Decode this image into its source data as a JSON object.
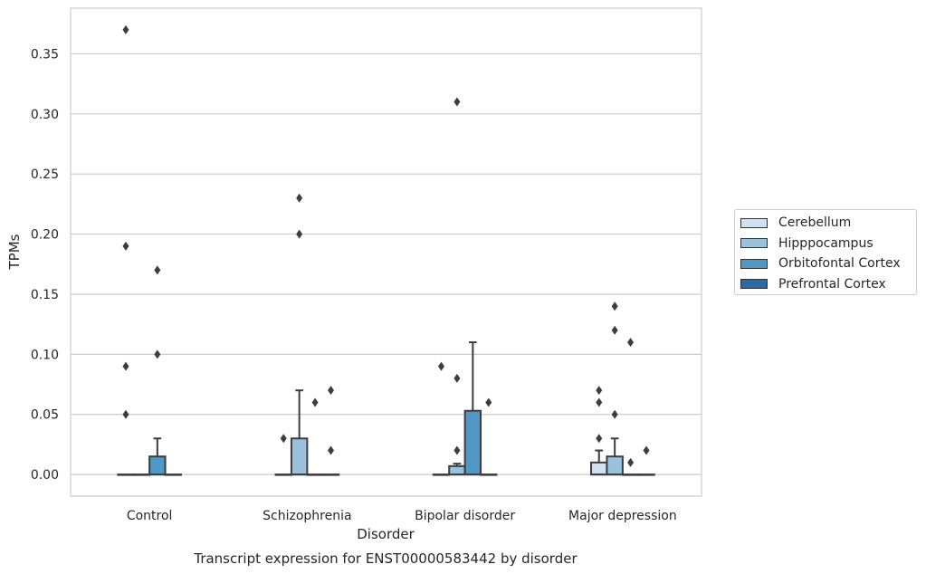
{
  "chart_data": {
    "type": "box",
    "title": "Transcript expression for ENST00000583442 by disorder",
    "xlabel": "Disorder",
    "ylabel": "TPMs",
    "ylim": [
      -0.018,
      0.388
    ],
    "yticks": [
      0.0,
      0.05,
      0.1,
      0.15,
      0.2,
      0.25,
      0.3,
      0.35
    ],
    "ytick_labels": [
      "0.00",
      "0.05",
      "0.10",
      "0.15",
      "0.20",
      "0.25",
      "0.30",
      "0.35"
    ],
    "grid": "horizontal",
    "legend_placement": "right",
    "categories": [
      "Control",
      "Schizophrenia",
      "Bipolar disorder",
      "Major depression"
    ],
    "series": [
      {
        "name": "Cerebellum",
        "color": "#d0e1f2",
        "boxes": [
          {
            "q1": 0,
            "median": 0,
            "q3": 0,
            "whislo": 0,
            "whishi": 0,
            "fliers": [
              0.05,
              0.09,
              0.19,
              0.37
            ]
          },
          {
            "q1": 0,
            "median": 0,
            "q3": 0,
            "whislo": 0,
            "whishi": 0,
            "fliers": [
              0.03
            ]
          },
          {
            "q1": 0,
            "median": 0,
            "q3": 0,
            "whislo": 0,
            "whishi": 0,
            "fliers": [
              0.09
            ]
          },
          {
            "q1": 0,
            "median": 0,
            "q3": 0.01,
            "whislo": 0,
            "whishi": 0.02,
            "fliers": [
              0.03,
              0.06,
              0.07
            ]
          }
        ]
      },
      {
        "name": "Hipppocampus",
        "color": "#9ac2dd",
        "boxes": [
          {
            "q1": 0,
            "median": 0,
            "q3": 0,
            "whislo": 0,
            "whishi": 0,
            "fliers": []
          },
          {
            "q1": 0,
            "median": 0,
            "q3": 0.03,
            "whislo": 0,
            "whishi": 0.07,
            "fliers": [
              0.2,
              0.23
            ]
          },
          {
            "q1": 0,
            "median": 0,
            "q3": 0.007,
            "whislo": 0,
            "whishi": 0.009,
            "fliers": [
              0.02,
              0.08,
              0.31
            ]
          },
          {
            "q1": 0,
            "median": 0,
            "q3": 0.015,
            "whislo": 0,
            "whishi": 0.03,
            "fliers": [
              0.05,
              0.12,
              0.14
            ]
          }
        ]
      },
      {
        "name": "Orbitofontal Cortex",
        "color": "#5197c5",
        "boxes": [
          {
            "q1": 0,
            "median": 0,
            "q3": 0.015,
            "whislo": 0,
            "whishi": 0.03,
            "fliers": [
              0.1,
              0.17
            ]
          },
          {
            "q1": 0,
            "median": 0,
            "q3": 0,
            "whislo": 0,
            "whishi": 0,
            "fliers": [
              0.06
            ]
          },
          {
            "q1": 0,
            "median": 0,
            "q3": 0.053,
            "whislo": 0,
            "whishi": 0.11,
            "fliers": []
          },
          {
            "q1": 0,
            "median": 0,
            "q3": 0,
            "whislo": 0,
            "whishi": 0,
            "fliers": [
              0.01,
              0.11
            ]
          }
        ]
      },
      {
        "name": "Prefrontal Cortex",
        "color": "#2a6aa7",
        "boxes": [
          {
            "q1": 0,
            "median": 0,
            "q3": 0,
            "whislo": 0,
            "whishi": 0,
            "fliers": []
          },
          {
            "q1": 0,
            "median": 0,
            "q3": 0,
            "whislo": 0,
            "whishi": 0,
            "fliers": [
              0.02,
              0.07
            ]
          },
          {
            "q1": 0,
            "median": 0,
            "q3": 0,
            "whislo": 0,
            "whishi": 0,
            "fliers": [
              0.06
            ]
          },
          {
            "q1": 0,
            "median": 0,
            "q3": 0,
            "whislo": 0,
            "whishi": 0,
            "fliers": [
              0.02
            ]
          }
        ]
      }
    ]
  }
}
